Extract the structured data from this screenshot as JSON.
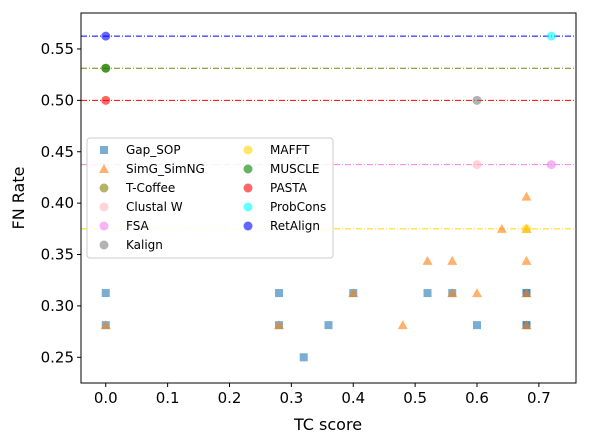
{
  "chart_data": {
    "type": "scatter",
    "xlabel": "TC score",
    "ylabel": "FN Rate",
    "xlim": [
      -0.04,
      0.76
    ],
    "ylim": [
      0.225,
      0.585
    ],
    "xticks": [
      "0.0",
      "0.1",
      "0.2",
      "0.3",
      "0.4",
      "0.5",
      "0.6",
      "0.7"
    ],
    "yticks": [
      "0.25",
      "0.30",
      "0.35",
      "0.40",
      "0.45",
      "0.50",
      "0.55"
    ],
    "legend_position": "center-left",
    "series": [
      {
        "name": "Gap_SOP",
        "marker": "square",
        "color": "#1f77b4",
        "points": [
          [
            0.0,
            0.3125
          ],
          [
            0.0,
            0.2813
          ],
          [
            0.28,
            0.3125
          ],
          [
            0.28,
            0.2813
          ],
          [
            0.32,
            0.25
          ],
          [
            0.36,
            0.2813
          ],
          [
            0.4,
            0.3125
          ],
          [
            0.52,
            0.3125
          ],
          [
            0.56,
            0.3125
          ],
          [
            0.6,
            0.2813
          ],
          [
            0.68,
            0.3125
          ],
          [
            0.68,
            0.3125
          ],
          [
            0.68,
            0.2813
          ],
          [
            0.68,
            0.2813
          ]
        ]
      },
      {
        "name": "SimG_SimNG",
        "marker": "triangle",
        "color": "#ff7f0e",
        "points": [
          [
            0.0,
            0.2813
          ],
          [
            0.28,
            0.2813
          ],
          [
            0.4,
            0.3125
          ],
          [
            0.48,
            0.2813
          ],
          [
            0.52,
            0.3438
          ],
          [
            0.56,
            0.3438
          ],
          [
            0.56,
            0.3125
          ],
          [
            0.6,
            0.3125
          ],
          [
            0.64,
            0.375
          ],
          [
            0.68,
            0.4063
          ],
          [
            0.68,
            0.375
          ],
          [
            0.68,
            0.3438
          ],
          [
            0.68,
            0.3125
          ],
          [
            0.68,
            0.2813
          ]
        ]
      },
      {
        "name": "T-Coffee",
        "marker": "circle",
        "color": "#808000",
        "hline": 0.5313,
        "points": [
          [
            0.0,
            0.5313
          ]
        ]
      },
      {
        "name": "Clustal W",
        "marker": "circle",
        "color": "#ffb6c1",
        "points": [
          [
            0.6,
            0.4375
          ]
        ]
      },
      {
        "name": "FSA",
        "marker": "circle",
        "color": "#ee82ee",
        "hline": 0.4375,
        "points": [
          [
            0.72,
            0.4375
          ]
        ]
      },
      {
        "name": "Kalign",
        "marker": "circle",
        "color": "#808080",
        "points": [
          [
            0.6,
            0.5
          ]
        ]
      },
      {
        "name": "MAFFT",
        "marker": "circle",
        "color": "#ffd700",
        "hline": 0.375,
        "points": [
          [
            0.68,
            0.375
          ]
        ]
      },
      {
        "name": "MUSCLE",
        "marker": "circle",
        "color": "#008000",
        "points": [
          [
            0.0,
            0.5313
          ]
        ]
      },
      {
        "name": "PASTA",
        "marker": "circle",
        "color": "#ff0000",
        "hline": 0.5,
        "points": [
          [
            0.0,
            0.5
          ]
        ]
      },
      {
        "name": "ProbCons",
        "marker": "circle",
        "color": "#00ffff",
        "points": [
          [
            0.72,
            0.5625
          ]
        ]
      },
      {
        "name": "RetAlign",
        "marker": "circle",
        "color": "#0000ff",
        "hline": 0.5625,
        "points": [
          [
            0.0,
            0.5625
          ]
        ]
      }
    ]
  }
}
